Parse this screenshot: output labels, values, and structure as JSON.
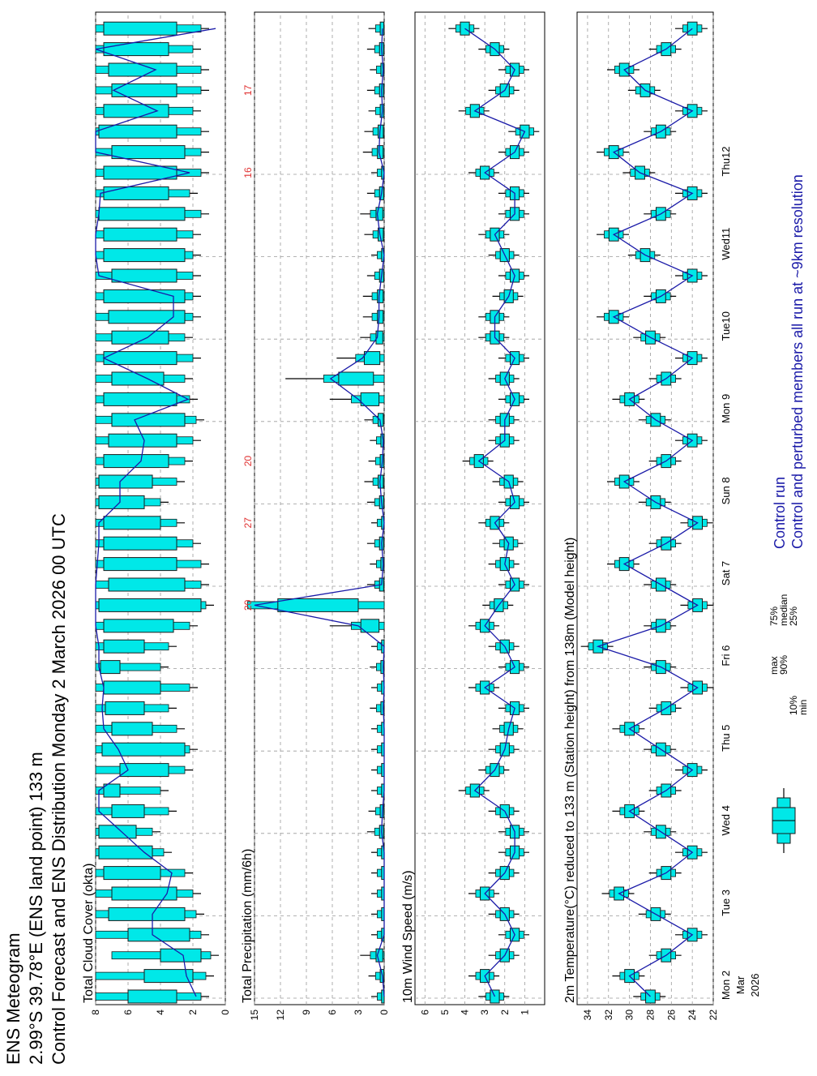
{
  "header": {
    "line1": "ENS Meteogram",
    "line2": "2.99°S 39.78°E (ENS land point) 133 m",
    "line3": "Control Forecast and ENS Distribution Monday   2 March 2026 00 UTC"
  },
  "colors": {
    "box": "#00e8e8",
    "box_stroke": "#1a1a1a",
    "control_line": "#1a1aa8",
    "red_label": "#e03030",
    "grid": "#9a9a9a"
  },
  "days": [
    "Mon 2",
    "Tue 3",
    "Wed 4",
    "Thu 5",
    "Fri 6",
    "Sat 7",
    "Sun 8",
    "Mon 9",
    "Tue10",
    "Wed11",
    "Thu12"
  ],
  "day_colors": [
    "#000000",
    "#000000",
    "#000000",
    "#000000",
    "#000000",
    "#000000",
    "#e03030",
    "#000000",
    "#000000",
    "#000000",
    "#000000"
  ],
  "start_label": {
    "month": "Mar",
    "year": "2026"
  },
  "legend": {
    "labels": [
      "max",
      "90%",
      "75%",
      "median",
      "25%",
      "10%",
      "min"
    ],
    "control": "Control run",
    "members": "Control and perturbed members all run at ~9km resolution"
  },
  "chart_data": [
    {
      "type": "box-whisker",
      "title": "Total Cloud Cover (okta)",
      "ylim": [
        0,
        8
      ],
      "yticks": [
        0,
        2,
        4,
        6,
        8
      ],
      "x_step_hours": 6,
      "control": [
        1.8,
        2.4,
        2.6,
        4.5,
        4.5,
        3.6,
        3.3,
        5.0,
        6.4,
        7.8,
        7.8,
        6.0,
        6.6,
        7.5,
        7.6,
        7.5,
        7.8,
        7.8,
        8.0,
        8.0,
        8.0,
        7.9,
        7.8,
        7.8,
        6.5,
        6.5,
        5.2,
        5.0,
        5.6,
        2.3,
        4.8,
        7.5,
        4.8,
        3.2,
        3.2,
        7.8,
        8.0,
        8.0,
        7.8,
        7.7,
        2.2,
        8.0,
        8.0,
        4.2,
        6.9,
        4.3,
        8.0,
        0.6,
        6.9
      ],
      "boxes": [
        [
          1.5,
          3.0,
          6.0,
          8.0
        ],
        [
          1.2,
          2.0,
          5.0,
          8.0
        ],
        [
          0.9,
          1.5,
          4.0,
          7.0
        ],
        [
          1.5,
          2.2,
          6.0,
          8.0
        ],
        [
          1.8,
          2.5,
          7.2,
          8.0
        ],
        [
          2.0,
          3.0,
          7.0,
          8.0
        ],
        [
          2.5,
          4.0,
          7.5,
          8.0
        ],
        [
          3.8,
          4.5,
          7.8,
          8.0
        ],
        [
          4.5,
          5.5,
          7.8,
          8.0
        ],
        [
          3.5,
          5.0,
          7.0,
          8.0
        ],
        [
          4.0,
          6.5,
          7.5,
          8.0
        ],
        [
          2.5,
          3.5,
          6.5,
          8.0
        ],
        [
          2.2,
          2.5,
          7.6,
          8.0
        ],
        [
          3.0,
          4.5,
          7.0,
          8.0
        ],
        [
          3.5,
          5.0,
          7.4,
          8.0
        ],
        [
          2.2,
          4.0,
          7.5,
          8.0
        ],
        [
          4.0,
          6.5,
          7.7,
          8.0
        ],
        [
          3.5,
          5.0,
          7.5,
          8.0
        ],
        [
          2.2,
          3.2,
          7.5,
          8.0
        ],
        [
          1.2,
          1.5,
          7.8,
          8.0
        ],
        [
          1.5,
          2.5,
          7.2,
          8.0
        ],
        [
          1.5,
          3.0,
          7.5,
          8.0
        ],
        [
          2.0,
          3.0,
          7.5,
          8.0
        ],
        [
          3.0,
          4.0,
          7.5,
          8.0
        ],
        [
          4.0,
          5.0,
          7.8,
          8.0
        ],
        [
          3.0,
          4.5,
          7.8,
          8.0
        ],
        [
          2.5,
          3.5,
          7.5,
          8.0
        ],
        [
          2.0,
          3.0,
          7.2,
          8.0
        ],
        [
          1.8,
          2.5,
          7.0,
          8.0
        ],
        [
          2.2,
          3.0,
          7.5,
          8.0
        ],
        [
          2.5,
          3.8,
          7.0,
          8.0
        ],
        [
          2.0,
          3.0,
          7.5,
          8.0
        ],
        [
          2.5,
          3.5,
          7.0,
          8.0
        ],
        [
          2.0,
          2.5,
          7.2,
          8.0
        ],
        [
          2.0,
          2.5,
          7.5,
          8.0
        ],
        [
          2.0,
          3.0,
          7.0,
          8.0
        ],
        [
          2.0,
          2.5,
          7.5,
          8.0
        ],
        [
          2.0,
          3.0,
          7.5,
          8.0
        ],
        [
          1.5,
          2.5,
          7.8,
          8.0
        ],
        [
          2.2,
          3.5,
          7.5,
          8.0
        ],
        [
          1.5,
          3.0,
          7.5,
          8.0
        ],
        [
          1.5,
          2.5,
          7.0,
          8.0
        ],
        [
          1.5,
          3.0,
          7.8,
          8.0
        ],
        [
          2.0,
          3.5,
          7.5,
          8.0
        ],
        [
          1.5,
          3.0,
          7.0,
          8.0
        ],
        [
          1.5,
          3.0,
          7.2,
          8.0
        ],
        [
          2.0,
          3.5,
          7.5,
          8.0
        ],
        [
          1.5,
          3.0,
          7.5,
          8.0
        ],
        [
          2.0,
          3.0,
          7.0,
          8.0
        ]
      ]
    },
    {
      "type": "box-whisker",
      "title": "Total Precipitation (mm/6h)",
      "ylim": [
        0,
        15
      ],
      "yticks": [
        0,
        3,
        6,
        9,
        12,
        15
      ],
      "control": [
        0,
        0.2,
        0.8,
        0,
        0,
        0,
        0,
        0,
        0.3,
        0.2,
        0,
        0,
        0,
        0,
        0.1,
        0,
        0.1,
        0,
        3,
        15,
        0.3,
        0.1,
        0.3,
        0,
        0.3,
        0.5,
        0.2,
        0.1,
        0.5,
        3.0,
        6.2,
        2.5,
        0.8,
        0.6,
        0.6,
        0.3,
        0,
        0.5,
        0.8,
        0.3,
        0,
        0.6,
        0.5,
        0.2,
        0.3,
        0.1,
        0.3,
        0.2,
        0
      ],
      "labels": [
        {
          "index": 19,
          "text": "20"
        },
        {
          "index": 23,
          "text": "27"
        },
        {
          "index": 26,
          "text": "20"
        },
        {
          "index": 40,
          "text": "16"
        },
        {
          "index": 44,
          "text": "17"
        }
      ]
    },
    {
      "type": "box-whisker",
      "title": "10m Wind Speed (m/s)",
      "ylim": [
        0,
        6.5
      ],
      "yticks": [
        1,
        2,
        3,
        4,
        5,
        6
      ],
      "control": [
        2.5,
        3.0,
        2.0,
        1.5,
        2.0,
        3.0,
        2.0,
        1.5,
        1.5,
        2.0,
        3.5,
        2.5,
        2.0,
        1.8,
        1.5,
        3.0,
        1.5,
        2.0,
        3.0,
        2.3,
        1.5,
        2.0,
        1.8,
        2.5,
        1.5,
        1.8,
        3.3,
        2.0,
        2.0,
        1.5,
        2.0,
        1.5,
        2.5,
        2.5,
        1.8,
        1.5,
        2.0,
        2.5,
        1.5,
        1.5,
        3.0,
        1.5,
        1.0,
        3.5,
        2.0,
        1.5,
        2.5,
        4.0,
        2.2,
        0.8
      ]
    },
    {
      "type": "box-whisker",
      "title": "2m Temperature(°C) reduced to 133 m (Station height) from 138m (Model height)",
      "ylim": [
        22,
        35
      ],
      "yticks": [
        22,
        24,
        26,
        28,
        30,
        32,
        34
      ],
      "control": [
        28.0,
        30.0,
        26.5,
        24.0,
        27.5,
        31.0,
        26.5,
        24.0,
        27.0,
        30.0,
        26.5,
        24.0,
        27.0,
        30.0,
        26.5,
        23.5,
        27.0,
        33.0,
        27.0,
        23.5,
        27.0,
        30.5,
        26.5,
        23.5,
        27.5,
        30.5,
        26.5,
        24.0,
        27.5,
        30.0,
        26.5,
        24.0,
        28.0,
        31.5,
        27.0,
        24.0,
        28.5,
        31.5,
        27.0,
        24.0,
        29.0,
        31.5,
        27.0,
        24.0,
        28.5,
        30.5,
        26.5,
        24.0
      ]
    }
  ],
  "x_day_start_index": [
    0,
    4,
    8,
    12,
    16,
    20,
    24,
    28,
    32,
    36,
    40
  ]
}
